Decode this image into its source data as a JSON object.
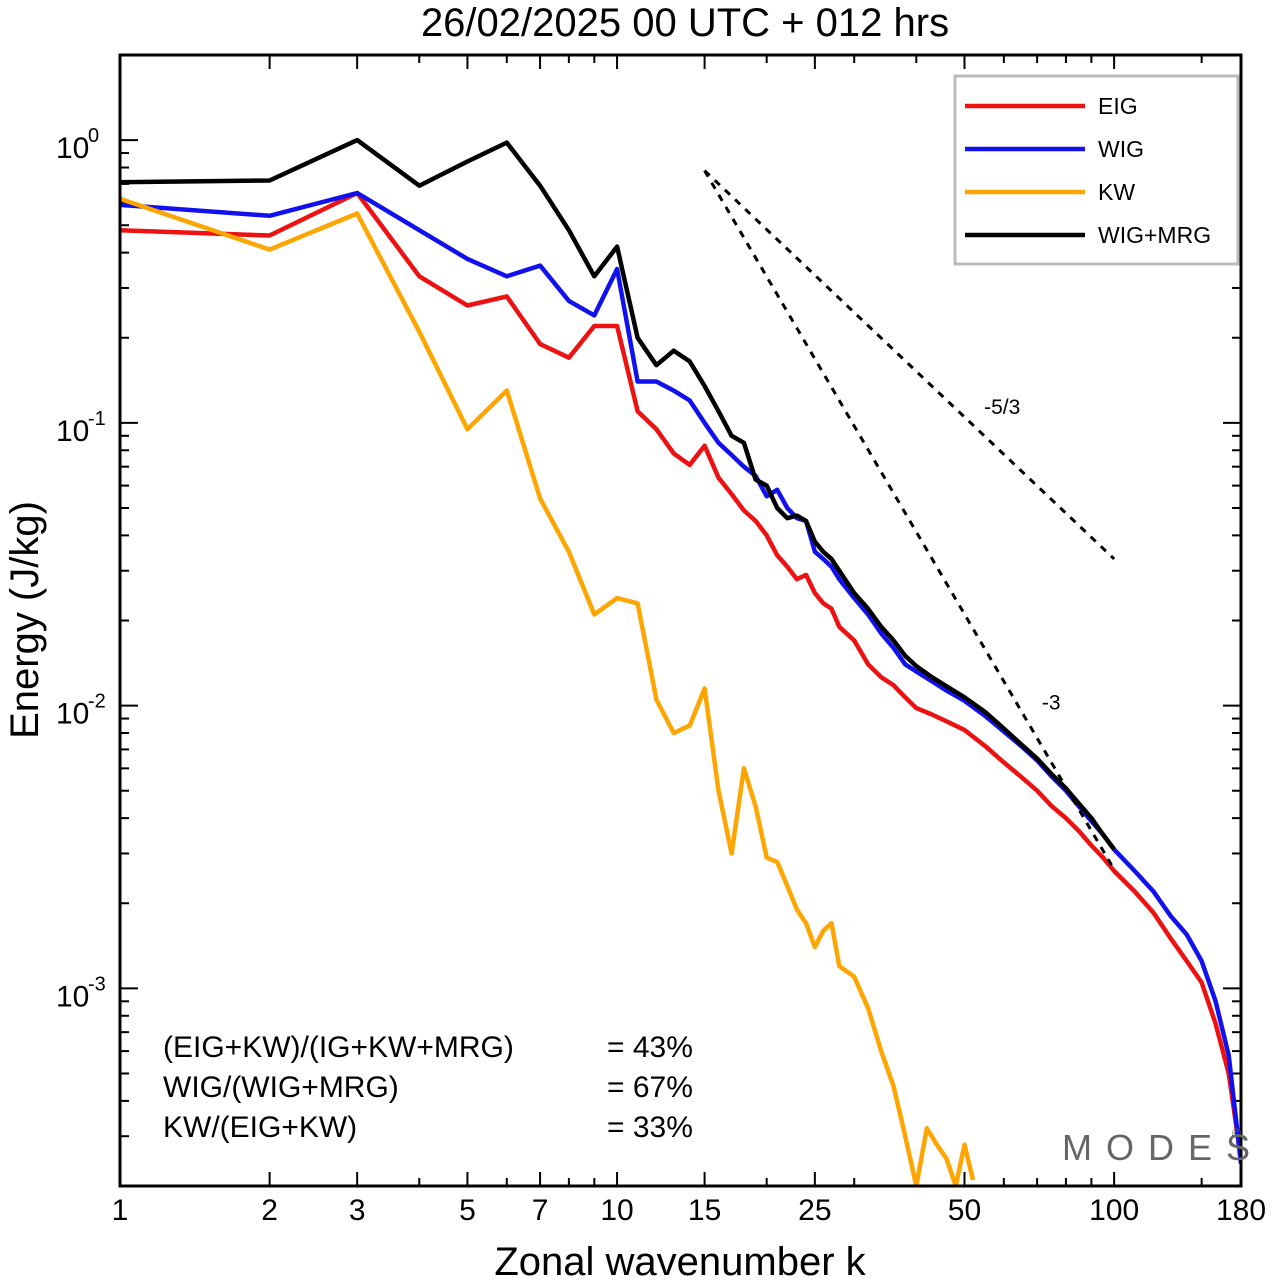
{
  "chart_data": {
    "type": "line",
    "title": "26/02/2025  00 UTC  + 012 hrs",
    "xlabel": "Zonal wavenumber k",
    "ylabel": "Energy (J/kg)",
    "xscale": "log",
    "yscale": "log",
    "xlim": [
      1,
      180
    ],
    "ylim": [
      0.0002,
      2
    ],
    "x_tick_labels": [
      {
        "value": 1,
        "label": "1"
      },
      {
        "value": 2,
        "label": "2"
      },
      {
        "value": 3,
        "label": "3"
      },
      {
        "value": 5,
        "label": "5"
      },
      {
        "value": 7,
        "label": "7"
      },
      {
        "value": 10,
        "label": "10"
      },
      {
        "value": 15,
        "label": "15"
      },
      {
        "value": 25,
        "label": "25"
      },
      {
        "value": 50,
        "label": "50"
      },
      {
        "value": 100,
        "label": "100"
      },
      {
        "value": 180,
        "label": "180"
      }
    ],
    "y_tick_labels": [
      {
        "value": 1,
        "base": "10",
        "exp": "0"
      },
      {
        "value": 0.1,
        "base": "10",
        "exp": "-1"
      },
      {
        "value": 0.01,
        "base": "10",
        "exp": "-2"
      },
      {
        "value": 0.001,
        "base": "10",
        "exp": "-3"
      }
    ],
    "grid": false,
    "legend": "top-right",
    "series": [
      {
        "name": "EIG",
        "color": "#ee1111",
        "x": [
          1,
          2,
          3,
          4,
          5,
          6,
          7,
          8,
          9,
          10,
          11,
          12,
          13,
          14,
          15,
          16,
          17,
          18,
          19,
          20,
          21,
          22,
          23,
          24,
          25,
          26,
          27,
          28,
          30,
          32,
          34,
          36,
          38,
          40,
          43,
          46,
          50,
          55,
          60,
          65,
          70,
          75,
          80,
          85,
          90,
          95,
          100,
          110,
          120,
          130,
          140,
          150,
          160,
          170,
          180
        ],
        "y": [
          0.48,
          0.46,
          0.65,
          0.33,
          0.26,
          0.28,
          0.19,
          0.17,
          0.22,
          0.22,
          0.11,
          0.095,
          0.078,
          0.071,
          0.083,
          0.064,
          0.056,
          0.049,
          0.045,
          0.04,
          0.034,
          0.031,
          0.028,
          0.029,
          0.025,
          0.023,
          0.022,
          0.019,
          0.017,
          0.014,
          0.0126,
          0.0118,
          0.0107,
          0.0098,
          0.0093,
          0.0088,
          0.0082,
          0.0072,
          0.0063,
          0.0056,
          0.005,
          0.0044,
          0.004,
          0.0036,
          0.0032,
          0.0029,
          0.0026,
          0.0022,
          0.00185,
          0.0015,
          0.00125,
          0.00105,
          0.00075,
          0.0005,
          0.00025
        ]
      },
      {
        "name": "WIG",
        "color": "#1111ee",
        "x": [
          1,
          2,
          3,
          4,
          5,
          6,
          7,
          8,
          9,
          10,
          11,
          12,
          13,
          14,
          15,
          16,
          17,
          18,
          19,
          20,
          21,
          22,
          23,
          24,
          25,
          26,
          27,
          28,
          30,
          32,
          34,
          36,
          38,
          40,
          43,
          46,
          50,
          55,
          60,
          65,
          70,
          75,
          80,
          85,
          90,
          95,
          100,
          110,
          120,
          130,
          140,
          150,
          160,
          170,
          180
        ],
        "y": [
          0.59,
          0.54,
          0.65,
          0.48,
          0.38,
          0.33,
          0.36,
          0.27,
          0.24,
          0.35,
          0.14,
          0.14,
          0.13,
          0.12,
          0.1,
          0.085,
          0.077,
          0.07,
          0.065,
          0.055,
          0.058,
          0.05,
          0.046,
          0.045,
          0.035,
          0.033,
          0.031,
          0.028,
          0.024,
          0.021,
          0.018,
          0.016,
          0.014,
          0.0132,
          0.0122,
          0.0113,
          0.0104,
          0.0092,
          0.0081,
          0.0072,
          0.0064,
          0.0056,
          0.005,
          0.0044,
          0.0039,
          0.0035,
          0.0031,
          0.0026,
          0.0022,
          0.0018,
          0.00155,
          0.00125,
          0.0009,
          0.00058,
          0.00024
        ]
      },
      {
        "name": "KW",
        "color": "#ffa500",
        "x": [
          1,
          2,
          3,
          4,
          5,
          6,
          7,
          8,
          9,
          10,
          11,
          12,
          13,
          14,
          15,
          16,
          17,
          18,
          19,
          20,
          21,
          22,
          23,
          24,
          25,
          26,
          27,
          28,
          30,
          32,
          34,
          36,
          38,
          40,
          42,
          44,
          46,
          48,
          50,
          52
        ],
        "y": [
          0.62,
          0.41,
          0.55,
          0.21,
          0.095,
          0.13,
          0.054,
          0.035,
          0.021,
          0.024,
          0.023,
          0.0105,
          0.008,
          0.0085,
          0.0115,
          0.005,
          0.003,
          0.006,
          0.0044,
          0.0029,
          0.0028,
          0.0023,
          0.0019,
          0.0017,
          0.0014,
          0.0016,
          0.0017,
          0.0012,
          0.0011,
          0.00085,
          0.0006,
          0.00045,
          0.0003,
          0.0002,
          0.00032,
          0.00028,
          0.00025,
          0.0002,
          0.00028,
          0.00021
        ]
      },
      {
        "name": "WIG+MRG",
        "color": "#000000",
        "x": [
          1,
          2,
          3,
          4,
          5,
          6,
          7,
          8,
          9,
          10,
          11,
          12,
          13,
          14,
          15,
          16,
          17,
          18,
          19,
          20,
          21,
          22,
          23,
          24,
          25,
          26,
          27,
          28,
          30,
          32,
          34,
          36,
          38,
          40,
          43,
          46,
          50,
          55,
          60,
          65,
          70,
          75,
          80,
          85,
          90,
          95,
          100
        ],
        "y": [
          0.71,
          0.72,
          1.0,
          0.69,
          0.84,
          0.98,
          0.69,
          0.48,
          0.33,
          0.42,
          0.2,
          0.16,
          0.18,
          0.165,
          0.135,
          0.11,
          0.09,
          0.085,
          0.063,
          0.06,
          0.05,
          0.046,
          0.047,
          0.045,
          0.038,
          0.035,
          0.033,
          0.03,
          0.025,
          0.022,
          0.019,
          0.017,
          0.015,
          0.0138,
          0.0126,
          0.0117,
          0.0107,
          0.0095,
          0.0083,
          0.0073,
          0.0065,
          0.0057,
          0.0051,
          0.0045,
          0.004,
          0.0035,
          0.0031
        ]
      }
    ],
    "reference_lines": [
      {
        "label": "-5/3",
        "slope": -1.6667,
        "x": [
          15,
          100
        ],
        "y0": 0.78
      },
      {
        "label": "-3",
        "slope": -3,
        "x": [
          15,
          100
        ],
        "y0": 0.78
      }
    ],
    "annotations": [
      {
        "text": "(EIG+KW)/(IG+KW+MRG)",
        "value": "= 43%"
      },
      {
        "text": "WIG/(WIG+MRG)",
        "value": "= 67%"
      },
      {
        "text": "KW/(EIG+KW)",
        "value": "= 33%"
      }
    ]
  },
  "watermark": {
    "text": "MODES",
    "symbol": "©"
  }
}
